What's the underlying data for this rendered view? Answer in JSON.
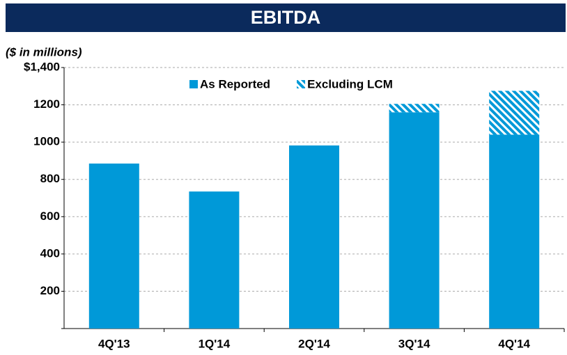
{
  "chart_data": {
    "type": "stacked_bar",
    "title": "EBITDA",
    "subtitle": "($ in millions)",
    "categories": [
      "4Q'13",
      "1Q'14",
      "2Q'14",
      "3Q'14",
      "4Q'14"
    ],
    "series": [
      {
        "name": "As Reported",
        "color": "#0099d8",
        "values": [
          885,
          735,
          982,
          1160,
          1040
        ]
      },
      {
        "name": "Excluding LCM",
        "color": "#0099d8",
        "pattern": "hatch",
        "values": [
          null,
          null,
          null,
          45,
          235
        ]
      }
    ],
    "ylim": [
      0,
      1400
    ],
    "yticks": [
      200,
      400,
      600,
      800,
      1000,
      1200,
      {
        "value": 1400,
        "label": "$1,400"
      }
    ],
    "grid": true,
    "legend": "top"
  }
}
